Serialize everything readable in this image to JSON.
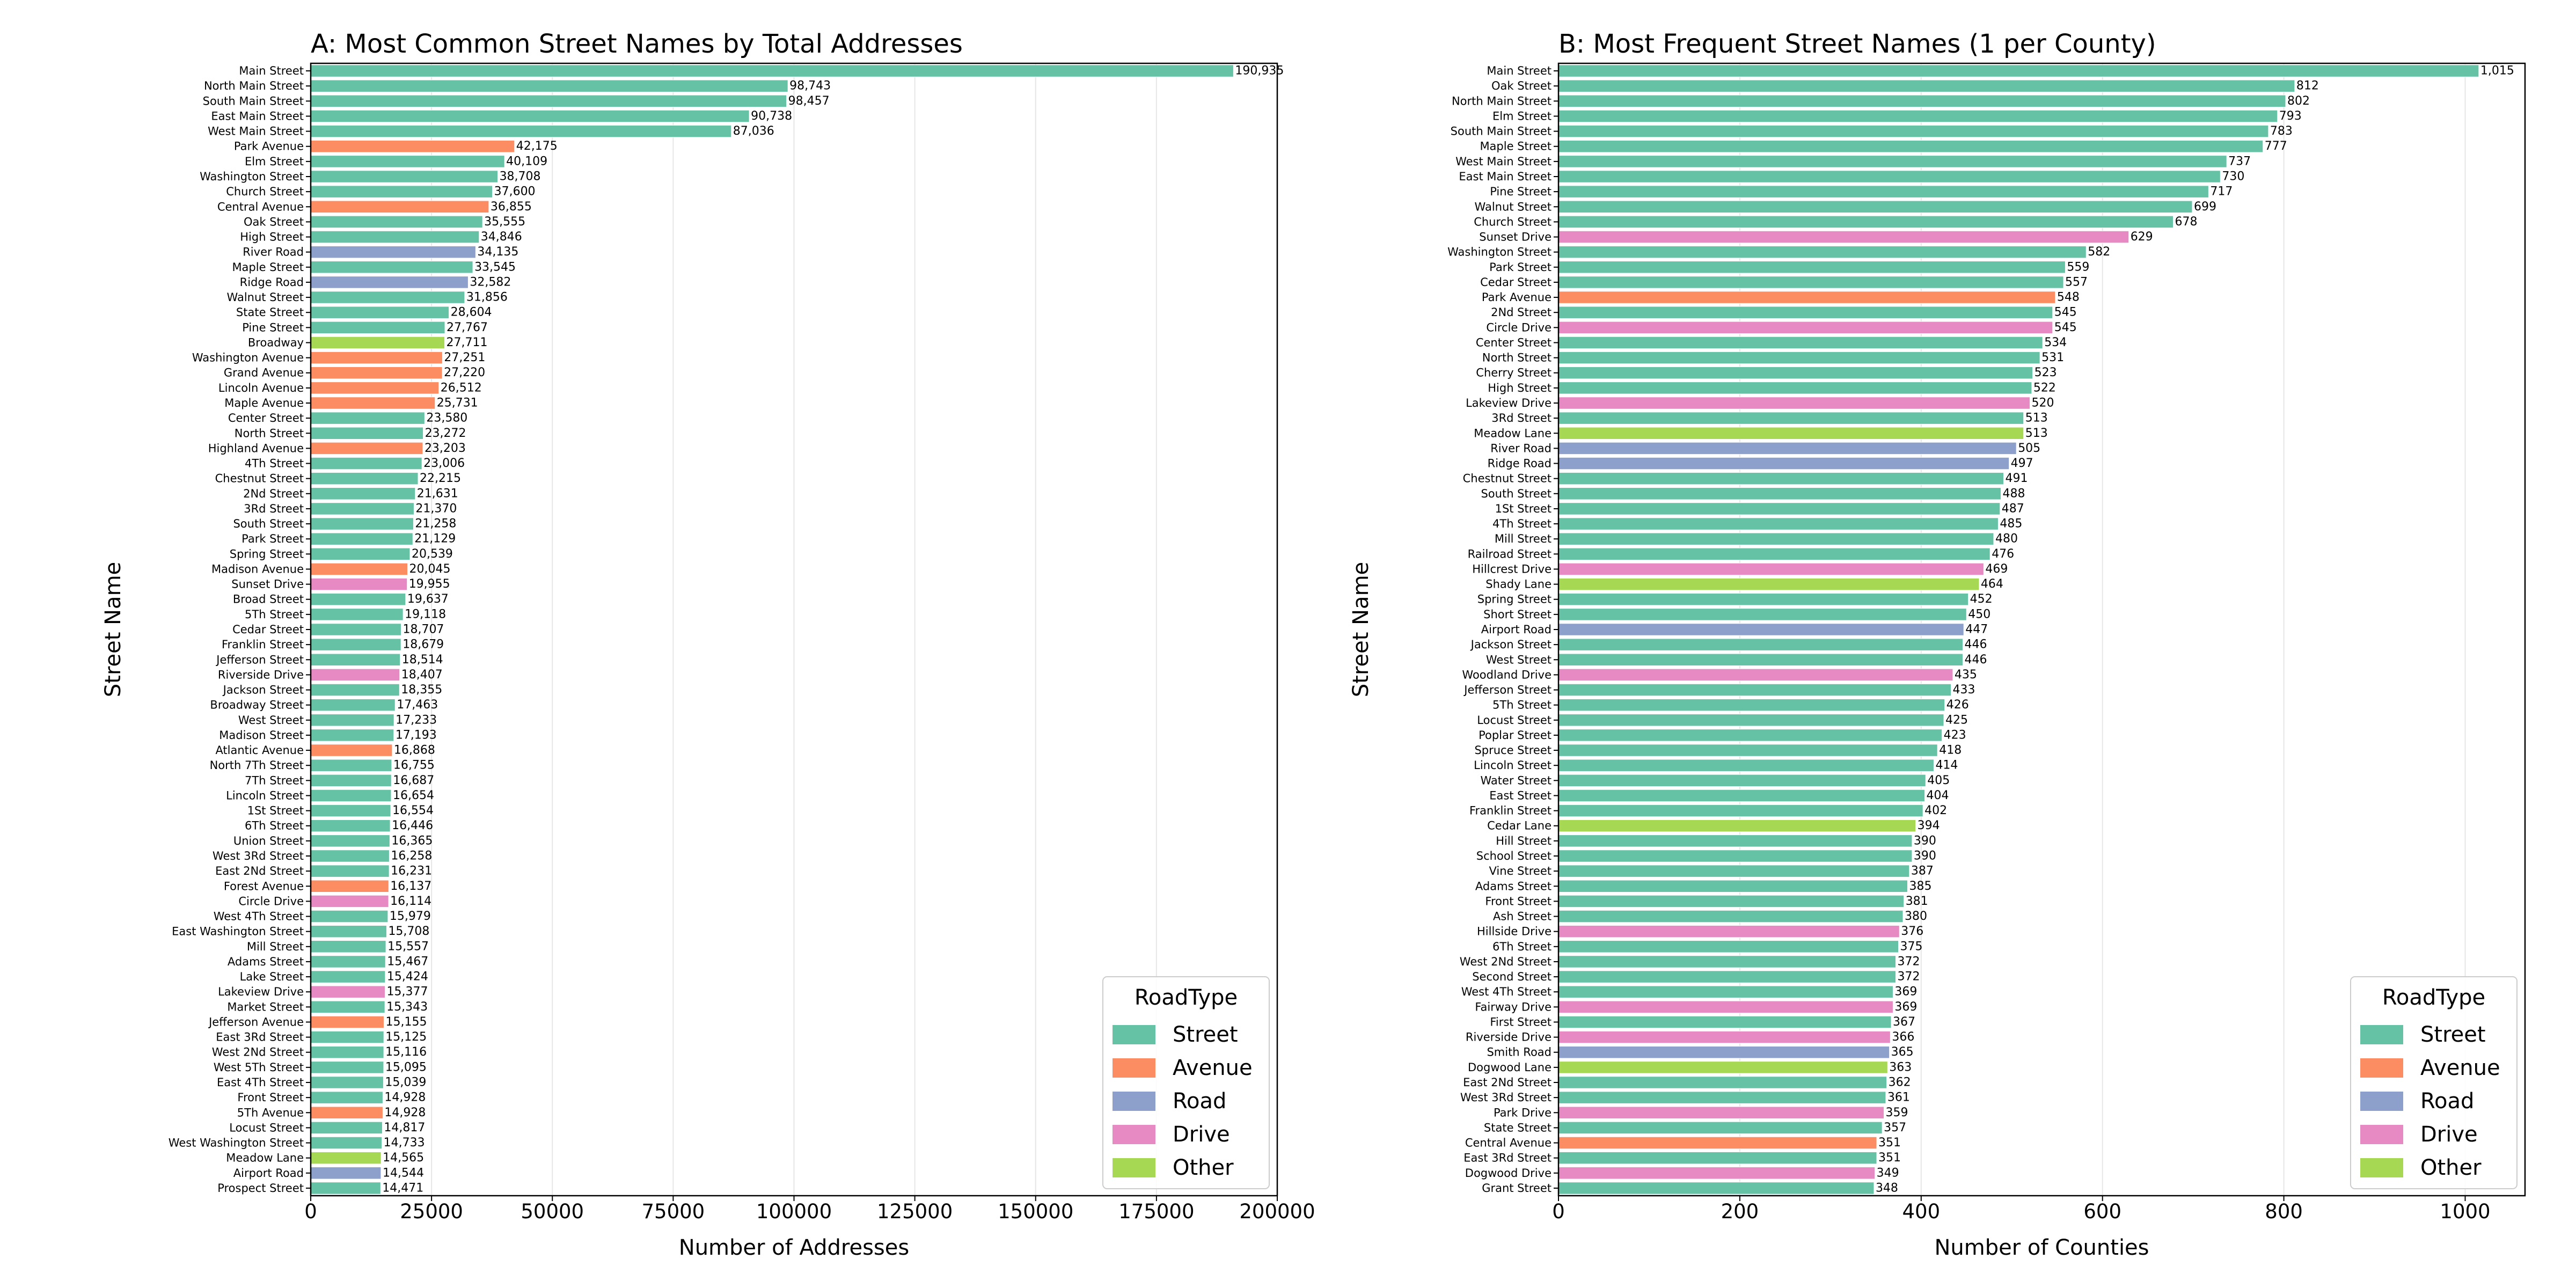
{
  "road_types": [
    {
      "name": "Street",
      "color": "#66c2a5"
    },
    {
      "name": "Avenue",
      "color": "#fc8d62"
    },
    {
      "name": "Road",
      "color": "#8da0cb"
    },
    {
      "name": "Drive",
      "color": "#e78ac3"
    },
    {
      "name": "Other",
      "color": "#a6d854"
    }
  ],
  "chart_data": [
    {
      "type": "bar",
      "orientation": "horizontal",
      "title": "A: Most Common Street Names by Total Addresses",
      "xlabel": "Number of Addresses",
      "ylabel": "Street Name",
      "xlim": [
        0,
        200000
      ],
      "xticks": [
        0,
        25000,
        50000,
        75000,
        100000,
        125000,
        150000,
        175000,
        200000
      ],
      "grid": "x",
      "legend": {
        "title": "RoadType",
        "placement": "lower-right"
      },
      "categories": [
        "Main Street",
        "North Main Street",
        "South Main Street",
        "East Main Street",
        "West Main Street",
        "Park Avenue",
        "Elm Street",
        "Washington Street",
        "Church Street",
        "Central Avenue",
        "Oak Street",
        "High Street",
        "River Road",
        "Maple Street",
        "Ridge Road",
        "Walnut Street",
        "State Street",
        "Pine Street",
        "Broadway",
        "Washington Avenue",
        "Grand Avenue",
        "Lincoln Avenue",
        "Maple Avenue",
        "Center Street",
        "North Street",
        "Highland Avenue",
        "4Th Street",
        "Chestnut Street",
        "2Nd Street",
        "3Rd Street",
        "South Street",
        "Park Street",
        "Spring Street",
        "Madison Avenue",
        "Sunset Drive",
        "Broad Street",
        "5Th Street",
        "Cedar Street",
        "Franklin Street",
        "Jefferson Street",
        "Riverside Drive",
        "Jackson Street",
        "Broadway Street",
        "West Street",
        "Madison Street",
        "Atlantic Avenue",
        "North 7Th Street",
        "7Th Street",
        "Lincoln Street",
        "1St Street",
        "6Th Street",
        "Union Street",
        "West 3Rd Street",
        "East 2Nd Street",
        "Forest Avenue",
        "Circle Drive",
        "West 4Th Street",
        "East Washington Street",
        "Mill Street",
        "Adams Street",
        "Lake Street",
        "Lakeview Drive",
        "Market Street",
        "Jefferson Avenue",
        "East 3Rd Street",
        "West 2Nd Street",
        "West 5Th Street",
        "East 4Th Street",
        "Front Street",
        "5Th Avenue",
        "Locust Street",
        "West Washington Street",
        "Meadow Lane",
        "Airport Road",
        "Prospect Street"
      ],
      "values": [
        190935,
        98743,
        98457,
        90738,
        87036,
        42175,
        40109,
        38708,
        37600,
        36855,
        35555,
        34846,
        34135,
        33545,
        32582,
        31856,
        28604,
        27767,
        27711,
        27251,
        27220,
        26512,
        25731,
        23580,
        23272,
        23203,
        23006,
        22215,
        21631,
        21370,
        21258,
        21129,
        20539,
        20045,
        19955,
        19637,
        19118,
        18707,
        18679,
        18514,
        18407,
        18355,
        17463,
        17233,
        17193,
        16868,
        16755,
        16687,
        16654,
        16554,
        16446,
        16365,
        16258,
        16231,
        16137,
        16114,
        15979,
        15708,
        15557,
        15467,
        15424,
        15377,
        15343,
        15155,
        15125,
        15116,
        15095,
        15039,
        14928,
        14928,
        14817,
        14733,
        14565,
        14544,
        14471
      ],
      "labels": [
        "190,935",
        "98,743",
        "98,457",
        "90,738",
        "87,036",
        "42,175",
        "40,109",
        "38,708",
        "37,600",
        "36,855",
        "35,555",
        "34,846",
        "34,135",
        "33,545",
        "32,582",
        "31,856",
        "28,604",
        "27,767",
        "27,711",
        "27,251",
        "27,220",
        "26,512",
        "25,731",
        "23,580",
        "23,272",
        "23,203",
        "23,006",
        "22,215",
        "21,631",
        "21,370",
        "21,258",
        "21,129",
        "20,539",
        "20,045",
        "19,955",
        "19,637",
        "19,118",
        "18,707",
        "18,679",
        "18,514",
        "18,407",
        "18,355",
        "17,463",
        "17,233",
        "17,193",
        "16,868",
        "16,755",
        "16,687",
        "16,654",
        "16,554",
        "16,446",
        "16,365",
        "16,258",
        "16,231",
        "16,137",
        "16,114",
        "15,979",
        "15,708",
        "15,557",
        "15,467",
        "15,424",
        "15,377",
        "15,343",
        "15,155",
        "15,125",
        "15,116",
        "15,095",
        "15,039",
        "14,928",
        "14,928",
        "14,817",
        "14,733",
        "14,565",
        "14,544",
        "14,471"
      ],
      "road_type": [
        "Street",
        "Street",
        "Street",
        "Street",
        "Street",
        "Avenue",
        "Street",
        "Street",
        "Street",
        "Avenue",
        "Street",
        "Street",
        "Road",
        "Street",
        "Road",
        "Street",
        "Street",
        "Street",
        "Other",
        "Avenue",
        "Avenue",
        "Avenue",
        "Avenue",
        "Street",
        "Street",
        "Avenue",
        "Street",
        "Street",
        "Street",
        "Street",
        "Street",
        "Street",
        "Street",
        "Avenue",
        "Drive",
        "Street",
        "Street",
        "Street",
        "Street",
        "Street",
        "Drive",
        "Street",
        "Street",
        "Street",
        "Street",
        "Avenue",
        "Street",
        "Street",
        "Street",
        "Street",
        "Street",
        "Street",
        "Street",
        "Street",
        "Avenue",
        "Drive",
        "Street",
        "Street",
        "Street",
        "Street",
        "Street",
        "Drive",
        "Street",
        "Avenue",
        "Street",
        "Street",
        "Street",
        "Street",
        "Street",
        "Avenue",
        "Street",
        "Street",
        "Other",
        "Road",
        "Street"
      ]
    },
    {
      "type": "bar",
      "orientation": "horizontal",
      "title": "B: Most Frequent Street Names (1 per County)",
      "xlabel": "Number of Counties",
      "ylabel": "Street Name",
      "xlim": [
        0,
        1066
      ],
      "xticks": [
        0,
        200,
        400,
        600,
        800,
        1000
      ],
      "grid": "x",
      "legend": {
        "title": "RoadType",
        "placement": "lower-right"
      },
      "categories": [
        "Main Street",
        "Oak Street",
        "North Main Street",
        "Elm Street",
        "South Main Street",
        "Maple Street",
        "West Main Street",
        "East Main Street",
        "Pine Street",
        "Walnut Street",
        "Church Street",
        "Sunset Drive",
        "Washington Street",
        "Park Street",
        "Cedar Street",
        "Park Avenue",
        "2Nd Street",
        "Circle Drive",
        "Center Street",
        "North Street",
        "Cherry Street",
        "High Street",
        "Lakeview Drive",
        "3Rd Street",
        "Meadow Lane",
        "River Road",
        "Ridge Road",
        "Chestnut Street",
        "South Street",
        "1St Street",
        "4Th Street",
        "Mill Street",
        "Railroad Street",
        "Hillcrest Drive",
        "Shady Lane",
        "Spring Street",
        "Short Street",
        "Airport Road",
        "Jackson Street",
        "West Street",
        "Woodland Drive",
        "Jefferson Street",
        "5Th Street",
        "Locust Street",
        "Poplar Street",
        "Spruce Street",
        "Lincoln Street",
        "Water Street",
        "East Street",
        "Franklin Street",
        "Cedar Lane",
        "Hill Street",
        "School Street",
        "Vine Street",
        "Adams Street",
        "Front Street",
        "Ash Street",
        "Hillside Drive",
        "6Th Street",
        "West 2Nd Street",
        "Second Street",
        "West 4Th Street",
        "Fairway Drive",
        "First Street",
        "Riverside Drive",
        "Smith Road",
        "Dogwood Lane",
        "East 2Nd Street",
        "West 3Rd Street",
        "Park Drive",
        "State Street",
        "Central Avenue",
        "East 3Rd Street",
        "Dogwood Drive",
        "Grant Street"
      ],
      "values": [
        1015,
        812,
        802,
        793,
        783,
        777,
        737,
        730,
        717,
        699,
        678,
        629,
        582,
        559,
        557,
        548,
        545,
        545,
        534,
        531,
        523,
        522,
        520,
        513,
        513,
        505,
        497,
        491,
        488,
        487,
        485,
        480,
        476,
        469,
        464,
        452,
        450,
        447,
        446,
        446,
        435,
        433,
        426,
        425,
        423,
        418,
        414,
        405,
        404,
        402,
        394,
        390,
        390,
        387,
        385,
        381,
        380,
        376,
        375,
        372,
        372,
        369,
        369,
        367,
        366,
        365,
        363,
        362,
        361,
        359,
        357,
        351,
        351,
        349,
        348
      ],
      "labels": [
        "1,015",
        "812",
        "802",
        "793",
        "783",
        "777",
        "737",
        "730",
        "717",
        "699",
        "678",
        "629",
        "582",
        "559",
        "557",
        "548",
        "545",
        "545",
        "534",
        "531",
        "523",
        "522",
        "520",
        "513",
        "513",
        "505",
        "497",
        "491",
        "488",
        "487",
        "485",
        "480",
        "476",
        "469",
        "464",
        "452",
        "450",
        "447",
        "446",
        "446",
        "435",
        "433",
        "426",
        "425",
        "423",
        "418",
        "414",
        "405",
        "404",
        "402",
        "394",
        "390",
        "390",
        "387",
        "385",
        "381",
        "380",
        "376",
        "375",
        "372",
        "372",
        "369",
        "369",
        "367",
        "366",
        "365",
        "363",
        "362",
        "361",
        "359",
        "357",
        "351",
        "351",
        "349",
        "348"
      ],
      "road_type": [
        "Street",
        "Street",
        "Street",
        "Street",
        "Street",
        "Street",
        "Street",
        "Street",
        "Street",
        "Street",
        "Street",
        "Drive",
        "Street",
        "Street",
        "Street",
        "Avenue",
        "Street",
        "Drive",
        "Street",
        "Street",
        "Street",
        "Street",
        "Drive",
        "Street",
        "Other",
        "Road",
        "Road",
        "Street",
        "Street",
        "Street",
        "Street",
        "Street",
        "Street",
        "Drive",
        "Other",
        "Street",
        "Street",
        "Road",
        "Street",
        "Street",
        "Drive",
        "Street",
        "Street",
        "Street",
        "Street",
        "Street",
        "Street",
        "Street",
        "Street",
        "Street",
        "Other",
        "Street",
        "Street",
        "Street",
        "Street",
        "Street",
        "Street",
        "Drive",
        "Street",
        "Street",
        "Street",
        "Street",
        "Drive",
        "Street",
        "Drive",
        "Road",
        "Other",
        "Street",
        "Street",
        "Drive",
        "Street",
        "Avenue",
        "Street",
        "Drive",
        "Street"
      ]
    }
  ]
}
